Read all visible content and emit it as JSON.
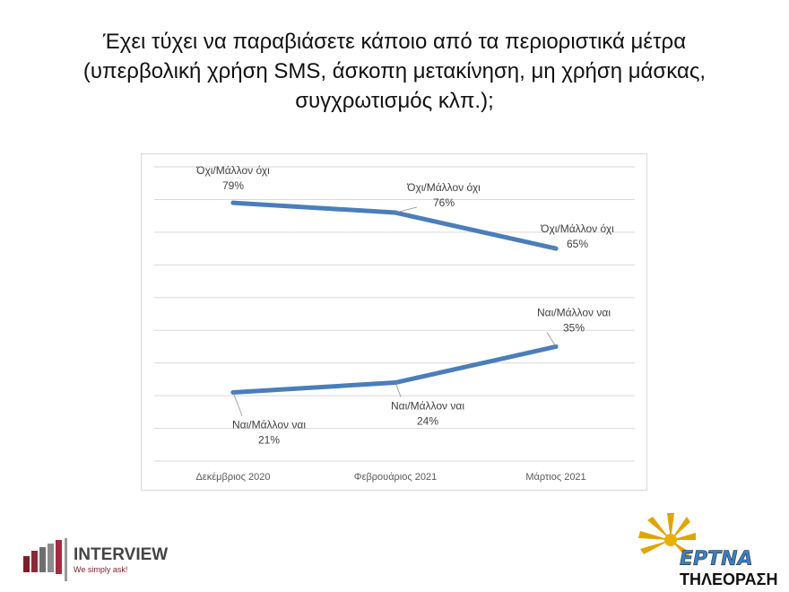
{
  "title_lines": [
    "Έχει τύχει να παραβιάσετε κάποιο από τα περιοριστικά μέτρα",
    "(υπερβολική χρήση SMS, άσκοπη μετακίνηση, μη χρήση μάσκας,",
    "συγχρωτισμός κλπ.);"
  ],
  "chart_data": {
    "type": "line",
    "categories": [
      "Δεκέμβριος 2020",
      "Φεβρουάριος 2021",
      "Μάρτιος 2021"
    ],
    "series": [
      {
        "name": "Όχι/Μάλλον όχι",
        "values": [
          79,
          76,
          65
        ]
      },
      {
        "name": "Ναι/Μάλλον ναι",
        "values": [
          21,
          24,
          35
        ]
      }
    ],
    "data_labels": [
      [
        "79%",
        "76%",
        "65%"
      ],
      [
        "21%",
        "24%",
        "35%"
      ]
    ],
    "ylim": [
      0,
      90
    ],
    "grid": true,
    "legend": "none",
    "color": "#4a7ebb"
  },
  "logos": {
    "interview_name": "INTERVIEW",
    "interview_tagline": "We simply ask!",
    "ert_name": "ΕΡΤΝΑ",
    "ert_subtitle": "ΤΗΛΕΟΡΑΣΗ"
  }
}
